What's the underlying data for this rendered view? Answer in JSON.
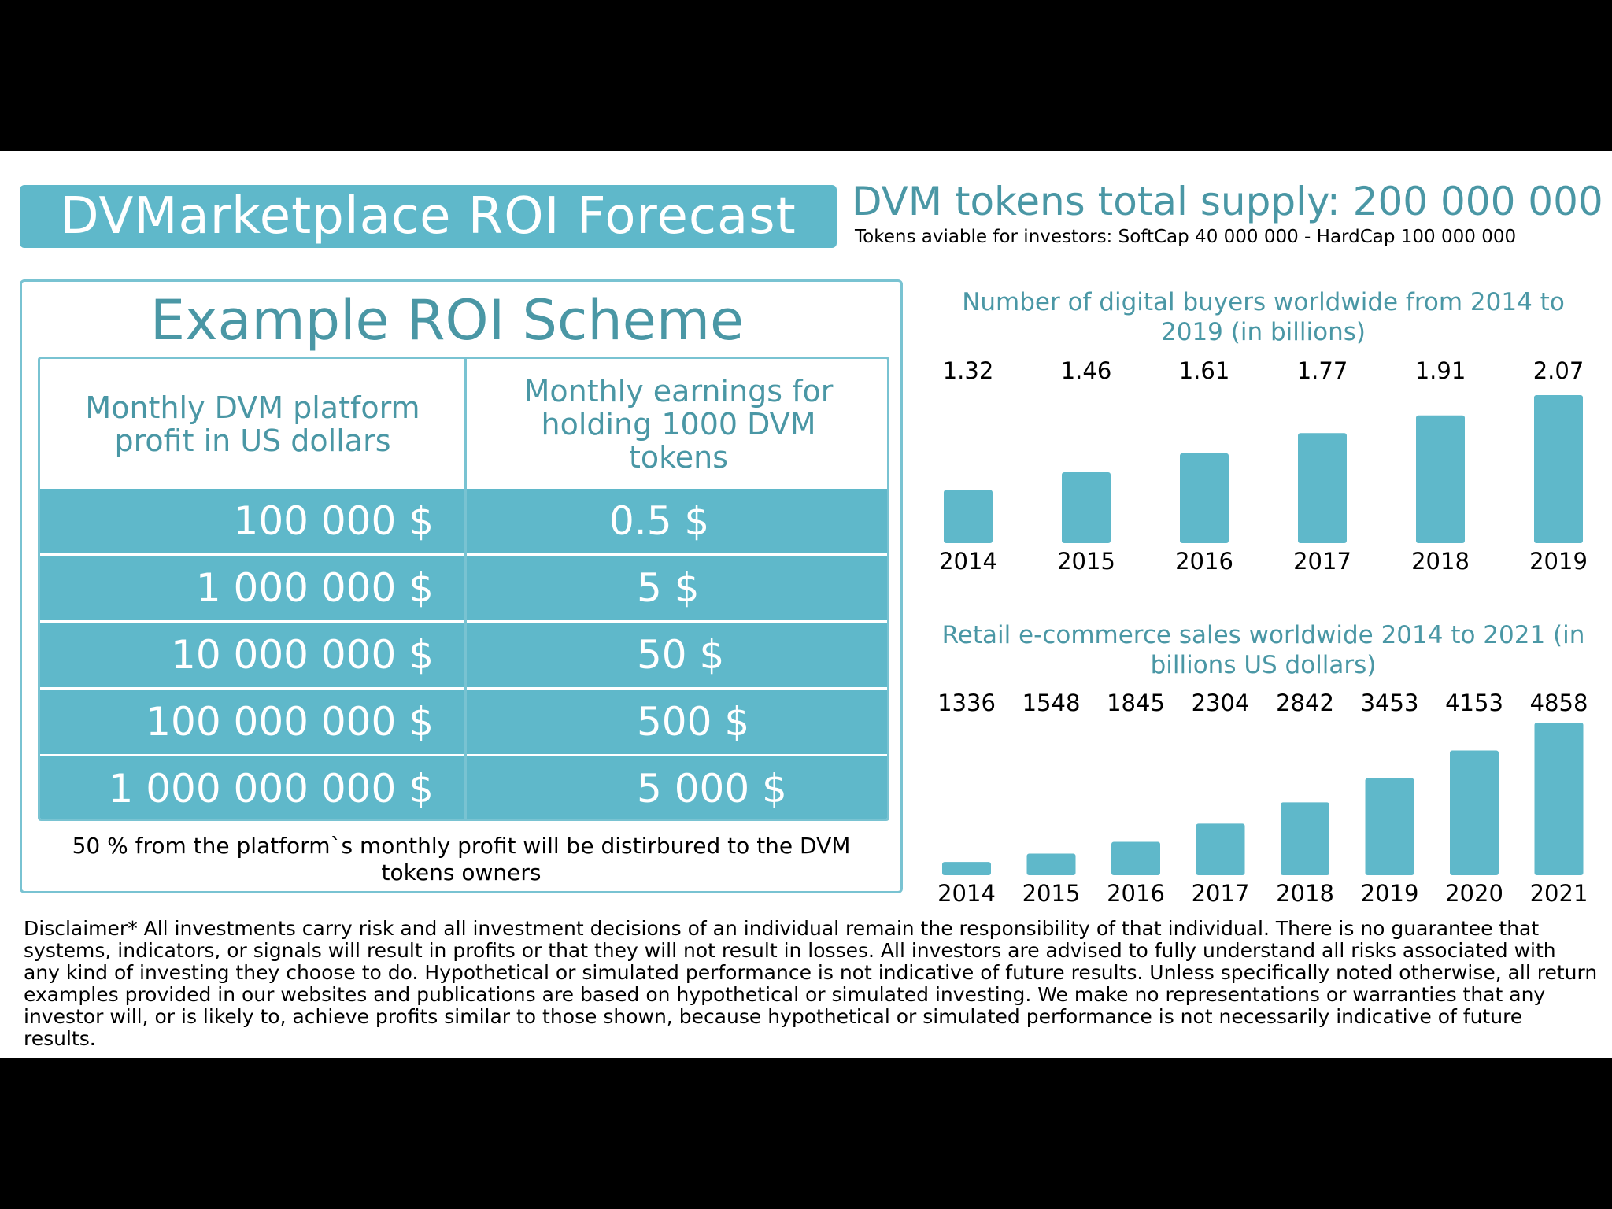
{
  "header": {
    "title": "DVMarketplace ROI Forecast",
    "supply": "DVM tokens total supply: 200 000 000",
    "supply_sub": "Tokens aviable for investors: SoftCap 40 000 000 - HardCap 100 000 000"
  },
  "roi_scheme": {
    "title": "Example ROI Scheme",
    "col1_header": "Monthly DVM platform profit in US dollars",
    "col2_header": "Monthly earnings for holding 1000 DVM tokens",
    "rows": [
      {
        "profit": "100 000 $",
        "earnings": "0.5 $"
      },
      {
        "profit": "1 000 000 $",
        "earnings": "5 $"
      },
      {
        "profit": "10 000 000 $",
        "earnings": "50 $"
      },
      {
        "profit": "100 000 000 $",
        "earnings": "500 $"
      },
      {
        "profit": "1 000 000 000 $",
        "earnings": "5 000 $"
      }
    ],
    "note": "50 % from the platform`s monthly profit will be distirbured to the DVM tokens owners"
  },
  "chart_data": [
    {
      "type": "bar",
      "title": "Number of digital buyers worldwide from 2014 to 2019 (in billions)",
      "categories": [
        "2014",
        "2015",
        "2016",
        "2017",
        "2018",
        "2019"
      ],
      "values": [
        1.32,
        1.46,
        1.61,
        1.77,
        1.91,
        2.07
      ],
      "labels": [
        "1.32",
        "1.46",
        "1.61",
        "1.77",
        "1.91",
        "2.07"
      ],
      "xlabel": "",
      "ylabel": "",
      "ylim": [
        0.9,
        2.07
      ],
      "color": "#5fb8ca"
    },
    {
      "type": "bar",
      "title": "Retail e-commerce sales worldwide 2014 to 2021 (in billions US dollars)",
      "categories": [
        "2014",
        "2015",
        "2016",
        "2017",
        "2018",
        "2019",
        "2020",
        "2021"
      ],
      "values": [
        1336,
        1548,
        1845,
        2304,
        2842,
        3453,
        4153,
        4858
      ],
      "labels": [
        "1336",
        "1548",
        "1845",
        "2304",
        "2842",
        "3453",
        "4153",
        "4858"
      ],
      "xlabel": "",
      "ylabel": "",
      "ylim": [
        1000,
        4858
      ],
      "color": "#5fb8ca"
    }
  ],
  "disclaimer": "Disclaimer* All investments carry risk and all investment decisions of an individual remain the responsibility of that individual. There is no guarantee that systems, indicators, or signals will result in profits or that they will not result in losses. All investors are advised to fully understand all risks associated with any kind of investing they choose to do. Hypothetical or simulated performance is not indicative of future results. Unless specifically noted otherwise, all return examples provided in our websites and publications are based on hypothetical or simulated investing. We make no representations or warranties that any investor will, or is likely to, achieve profits similar to those shown, because hypothetical or simulated performance is not necessarily indicative of future results."
}
